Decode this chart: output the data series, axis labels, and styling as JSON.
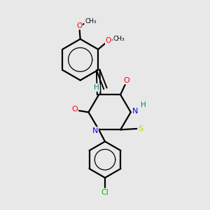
{
  "background_color": "#e8e8e8",
  "bond_color": "#000000",
  "atom_colors": {
    "O": "#ff0000",
    "N": "#0000ff",
    "S": "#cccc00",
    "Cl": "#00bb00",
    "H": "#008080",
    "C": "#000000"
  },
  "figsize": [
    3.0,
    3.0
  ],
  "dpi": 100
}
